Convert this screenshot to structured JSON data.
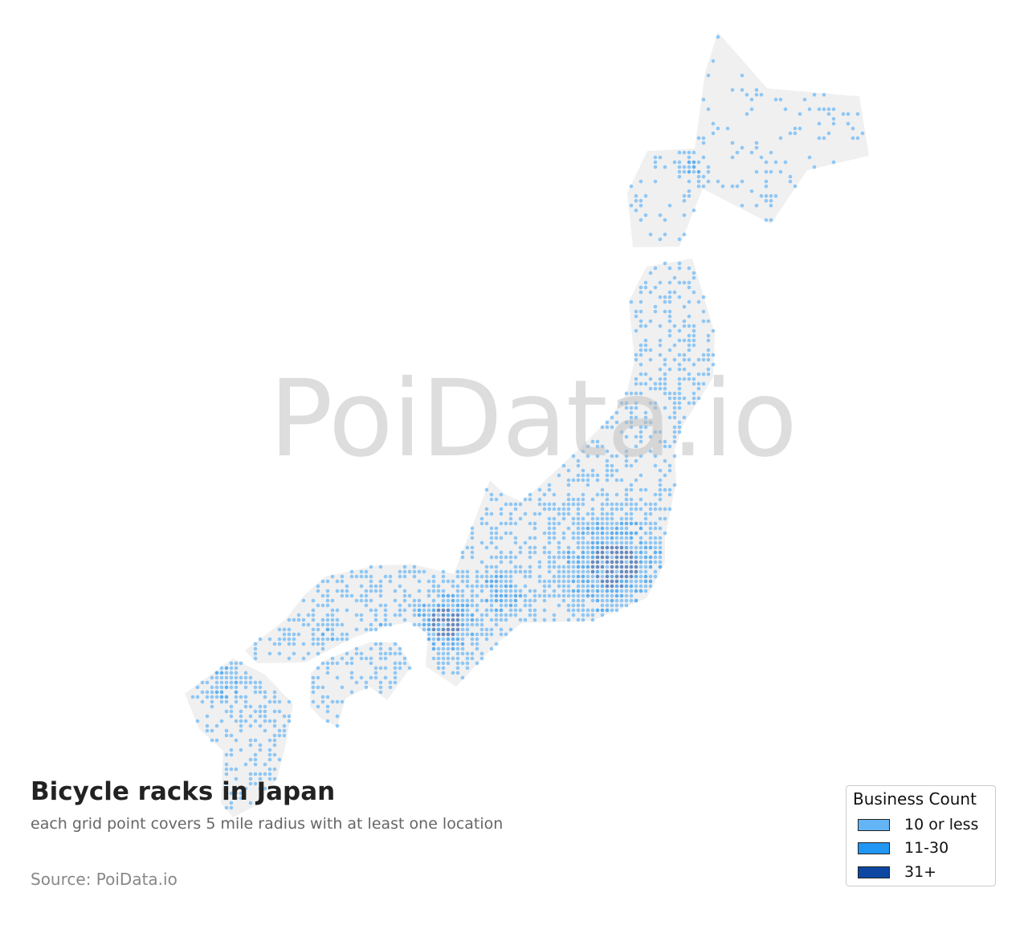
{
  "map": {
    "land_color": "#f0f0f0",
    "watermark": "PoiData.io"
  },
  "title": "Bicycle racks in Japan",
  "subtitle": "each grid point covers 5 mile radius with at least one location",
  "source": "Source: PoiData.io",
  "legend": {
    "title": "Business Count",
    "items": [
      {
        "label": "10 or less",
        "color": "#64b5f6"
      },
      {
        "label": "11-30",
        "color": "#2196f3"
      },
      {
        "label": "31+",
        "color": "#0d47a1"
      }
    ]
  }
}
